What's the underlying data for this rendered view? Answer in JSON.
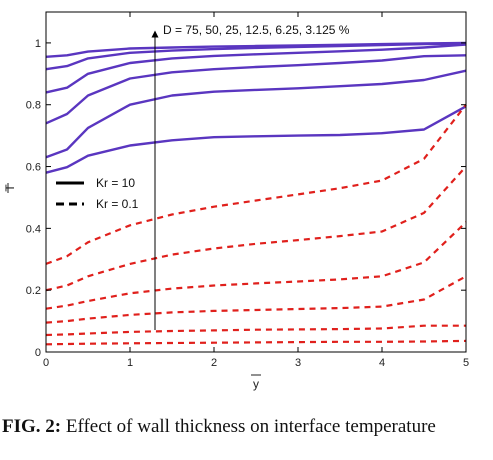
{
  "caption": {
    "label": "FIG. 2:",
    "text": "Effect of wall thickness on interface temperature"
  },
  "colors": {
    "kr10": "#5a36c0",
    "kr01": "#e0201c",
    "axis": "#000000",
    "arrow": "#000000"
  },
  "chart_data": {
    "type": "line",
    "title": "",
    "xlabel": "y",
    "ylabel": "T",
    "xlim": [
      0,
      5
    ],
    "ylim": [
      0,
      1.1
    ],
    "xticks": [
      0,
      1,
      2,
      3,
      4,
      5
    ],
    "yticks": [
      0,
      0.2,
      0.4,
      0.6,
      0.8,
      1
    ],
    "grid": false,
    "legend_position": "left",
    "annotation": "D = 75, 50, 25, 12.5, 6.25, 3.125 %",
    "legend": [
      {
        "label": "Kr = 10",
        "style": "solid"
      },
      {
        "label": "Kr = 0.1",
        "style": "dashed"
      }
    ],
    "x": [
      0,
      0.25,
      0.5,
      1,
      1.5,
      2,
      2.5,
      3,
      3.5,
      4,
      4.5,
      5
    ],
    "series": [
      {
        "group": "Kr = 10",
        "values": [
          0.955,
          0.96,
          0.972,
          0.982,
          0.985,
          0.988,
          0.99,
          0.992,
          0.994,
          0.996,
          0.998,
          1.0
        ]
      },
      {
        "group": "Kr = 10",
        "values": [
          0.915,
          0.925,
          0.95,
          0.968,
          0.975,
          0.98,
          0.984,
          0.987,
          0.99,
          0.993,
          0.996,
          0.998
        ]
      },
      {
        "group": "Kr = 10",
        "values": [
          0.84,
          0.855,
          0.9,
          0.935,
          0.95,
          0.958,
          0.963,
          0.968,
          0.973,
          0.978,
          0.985,
          0.995
        ]
      },
      {
        "group": "Kr = 10",
        "values": [
          0.74,
          0.77,
          0.83,
          0.885,
          0.905,
          0.915,
          0.922,
          0.928,
          0.935,
          0.943,
          0.957,
          0.96
        ]
      },
      {
        "group": "Kr = 10",
        "values": [
          0.63,
          0.655,
          0.725,
          0.8,
          0.83,
          0.842,
          0.848,
          0.853,
          0.86,
          0.867,
          0.88,
          0.91
        ]
      },
      {
        "group": "Kr = 10",
        "values": [
          0.58,
          0.598,
          0.635,
          0.668,
          0.685,
          0.695,
          0.698,
          0.7,
          0.702,
          0.708,
          0.72,
          0.795
        ]
      },
      {
        "group": "Kr = 0.1",
        "values": [
          0.285,
          0.31,
          0.355,
          0.41,
          0.445,
          0.47,
          0.49,
          0.51,
          0.53,
          0.555,
          0.625,
          0.8
        ]
      },
      {
        "group": "Kr = 0.1",
        "values": [
          0.2,
          0.215,
          0.245,
          0.285,
          0.315,
          0.335,
          0.35,
          0.362,
          0.375,
          0.39,
          0.45,
          0.6
        ]
      },
      {
        "group": "Kr = 0.1",
        "values": [
          0.14,
          0.15,
          0.165,
          0.19,
          0.205,
          0.215,
          0.222,
          0.228,
          0.235,
          0.245,
          0.29,
          0.42
        ]
      },
      {
        "group": "Kr = 0.1",
        "values": [
          0.095,
          0.1,
          0.108,
          0.12,
          0.128,
          0.133,
          0.136,
          0.139,
          0.142,
          0.147,
          0.17,
          0.245
        ]
      },
      {
        "group": "Kr = 0.1",
        "values": [
          0.055,
          0.057,
          0.06,
          0.065,
          0.068,
          0.07,
          0.072,
          0.073,
          0.074,
          0.076,
          0.085,
          0.085
        ]
      },
      {
        "group": "Kr = 0.1",
        "values": [
          0.025,
          0.026,
          0.027,
          0.028,
          0.029,
          0.03,
          0.031,
          0.032,
          0.033,
          0.033,
          0.034,
          0.036
        ]
      }
    ]
  }
}
